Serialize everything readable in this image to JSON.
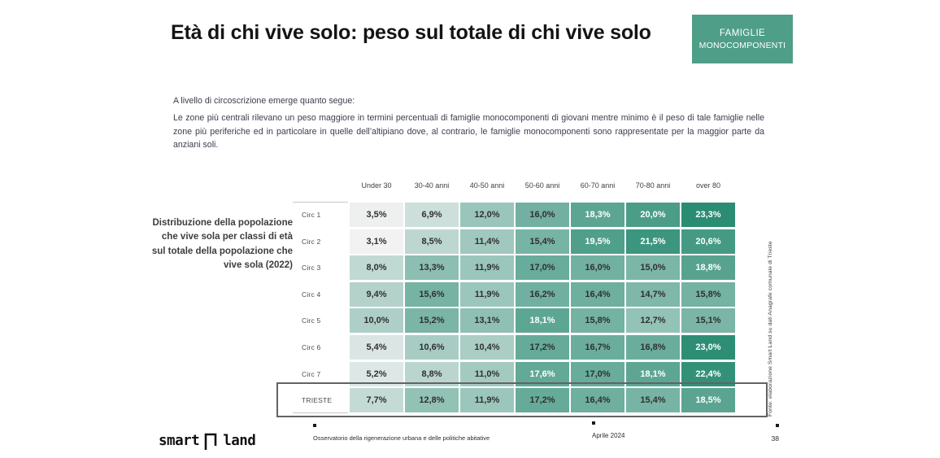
{
  "slide": {
    "title": "Età di chi vive solo: peso sul totale di chi vive solo",
    "badge": {
      "line1": "FAMIGLIE",
      "line2": "MONOCOMPONENTI",
      "bg_color": "#4f9e88"
    },
    "intro_line": "A livello di circoscrizione emerge quanto segue:",
    "intro_paragraph": "Le zone più centrali rilevano un peso maggiore in termini percentuali di famiglie monocomponenti di giovani mentre minimo è il peso di tale famiglie nelle zone più periferiche ed in particolare in quelle dell’altipiano dove, al contrario, le famiglie monocomponenti sono rappresentate per la maggior parte da anziani soli.",
    "caption": "Distribuzione della popolazione che vive sola per classi di età sul totale della popolazione che vive sola (2022)",
    "source_note": "Fonte: elaborazione Smart Land su dati Anagrafe comunale di Trieste"
  },
  "chart_data": {
    "type": "heatmap",
    "title": "Distribuzione della popolazione che vive sola per classi di età sul totale della popolazione che vive sola (2022)",
    "columns": [
      "Under 30",
      "30-40 anni",
      "40-50 anni",
      "50-60 anni",
      "60-70 anni",
      "70-80 anni",
      "over 80"
    ],
    "rows": [
      {
        "label": "Circ 1",
        "values": [
          3.5,
          6.9,
          12.0,
          16.0,
          18.3,
          20.0,
          23.3
        ]
      },
      {
        "label": "Circ 2",
        "values": [
          3.1,
          8.5,
          11.4,
          15.4,
          19.5,
          21.5,
          20.6
        ]
      },
      {
        "label": "Circ 3",
        "values": [
          8.0,
          13.3,
          11.9,
          17.0,
          16.0,
          15.0,
          18.8
        ]
      },
      {
        "label": "Circ 4",
        "values": [
          9.4,
          15.6,
          11.9,
          16.2,
          16.4,
          14.7,
          15.8
        ]
      },
      {
        "label": "Circ 5",
        "values": [
          10.0,
          15.2,
          13.1,
          18.1,
          15.8,
          12.7,
          15.1
        ]
      },
      {
        "label": "Circ 6",
        "values": [
          5.4,
          10.6,
          10.4,
          17.2,
          16.7,
          16.8,
          23.0
        ]
      },
      {
        "label": "Circ 7",
        "values": [
          5.2,
          8.8,
          11.0,
          17.6,
          17.0,
          18.1,
          22.4
        ]
      },
      {
        "label": "TRIESTE",
        "values": [
          7.7,
          12.8,
          11.9,
          17.2,
          16.4,
          15.4,
          18.5
        ]
      }
    ],
    "value_unit": "percent",
    "value_format": "one decimal, comma separator, % suffix",
    "color_scale": {
      "min_value": 3.1,
      "max_value": 23.3,
      "min_color": "#f2f2f2",
      "max_color": "#2a8c73",
      "white_text_threshold": 17.5
    },
    "highlighted_row": "TRIESTE",
    "source": "Fonte: elaborazione Smart Land su dati Anagrafe comunale di Trieste"
  },
  "footer": {
    "logo_left": "smart",
    "logo_right": "land",
    "observatory": "Osservatorio della rigenerazione urbana e delle politiche abitative",
    "date": "Aprile 2024",
    "page_number": "38"
  }
}
